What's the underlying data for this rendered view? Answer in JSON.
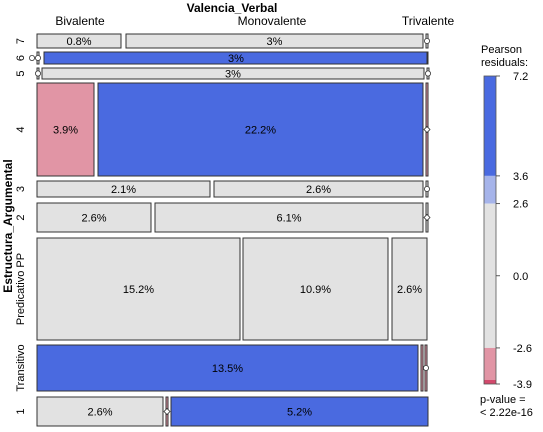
{
  "chart_data": {
    "type": "mosaic",
    "title": "Valencia_Verbal",
    "xlabel": "Valencia_Verbal",
    "ylabel": "Estructura_Argumental",
    "column_categories": [
      "Bivalente",
      "Monovalente",
      "Trivalente"
    ],
    "row_categories": [
      {
        "label": "7",
        "cells": [
          {
            "column": "Bivalente",
            "label": "0.8%",
            "residual_band": "neutral"
          },
          {
            "column": "Monovalente",
            "label": "3%",
            "residual_band": "neutral"
          },
          {
            "column": "Trivalente",
            "label": "",
            "residual_band": "neutral"
          }
        ]
      },
      {
        "label": "6",
        "cells": [
          {
            "column": "Bivalente",
            "label": "",
            "residual_band": "neutral"
          },
          {
            "column": "Monovalente",
            "label": "3%",
            "residual_band": "high_positive"
          },
          {
            "column": "Trivalente",
            "label": "",
            "residual_band": "neutral"
          }
        ]
      },
      {
        "label": "5",
        "cells": [
          {
            "column": "Bivalente",
            "label": "",
            "residual_band": "neutral"
          },
          {
            "column": "Monovalente",
            "label": "3%",
            "residual_band": "neutral"
          },
          {
            "column": "Trivalente",
            "label": "",
            "residual_band": "neutral"
          }
        ]
      },
      {
        "label": "4",
        "cells": [
          {
            "column": "Bivalente",
            "label": "3.9%",
            "residual_band": "moderate_negative"
          },
          {
            "column": "Monovalente",
            "label": "22.2%",
            "residual_band": "high_positive"
          },
          {
            "column": "Trivalente",
            "label": "",
            "residual_band": "moderate_negative"
          }
        ]
      },
      {
        "label": "3",
        "cells": [
          {
            "column": "Bivalente",
            "label": "2.1%",
            "residual_band": "neutral"
          },
          {
            "column": "Monovalente",
            "label": "2.6%",
            "residual_band": "neutral"
          },
          {
            "column": "Trivalente",
            "label": "",
            "residual_band": "neutral"
          }
        ]
      },
      {
        "label": "2",
        "cells": [
          {
            "column": "Bivalente",
            "label": "2.6%",
            "residual_band": "neutral"
          },
          {
            "column": "Monovalente",
            "label": "6.1%",
            "residual_band": "neutral"
          },
          {
            "column": "Trivalente",
            "label": "",
            "residual_band": "neutral"
          }
        ]
      },
      {
        "label": "Predicativo PP",
        "cells": [
          {
            "column": "Bivalente",
            "label": "15.2%",
            "residual_band": "neutral"
          },
          {
            "column": "Monovalente",
            "label": "10.9%",
            "residual_band": "neutral"
          },
          {
            "column": "Trivalente",
            "label": "2.6%",
            "residual_band": "neutral"
          }
        ]
      },
      {
        "label": "Transitivo",
        "cells": [
          {
            "column": "Bivalente",
            "label": "13.5%",
            "residual_band": "high_positive"
          },
          {
            "column": "Monovalente",
            "label": "",
            "residual_band": "moderate_negative"
          },
          {
            "column": "Trivalente",
            "label": "",
            "residual_band": "moderate_negative"
          }
        ]
      },
      {
        "label": "1",
        "cells": [
          {
            "column": "Bivalente",
            "label": "2.6%",
            "residual_band": "neutral"
          },
          {
            "column": "Monovalente",
            "label": "",
            "residual_band": "moderate_negative"
          },
          {
            "column": "Trivalente",
            "label": "5.2%",
            "residual_band": "high_positive"
          }
        ]
      }
    ],
    "legend": {
      "title": "Pearson residuals:",
      "ticks": [
        7.2,
        3.6,
        2.6,
        0.0,
        -2.6,
        -3.9
      ],
      "tick_labels": [
        "7.2",
        "3.6",
        "2.6",
        "0.0",
        "-2.6",
        "-3.9"
      ],
      "range": [
        -3.9,
        7.2
      ],
      "p_value": "p-value = < 2.22e-16",
      "placement": "right"
    },
    "colors": {
      "high_positive": "#4a6ae0",
      "moderate_positive": "#a6b4ea",
      "neutral": "#e2e2e2",
      "moderate_negative": "#e195a5",
      "high_negative": "#d2496c",
      "border": "#333333"
    }
  }
}
